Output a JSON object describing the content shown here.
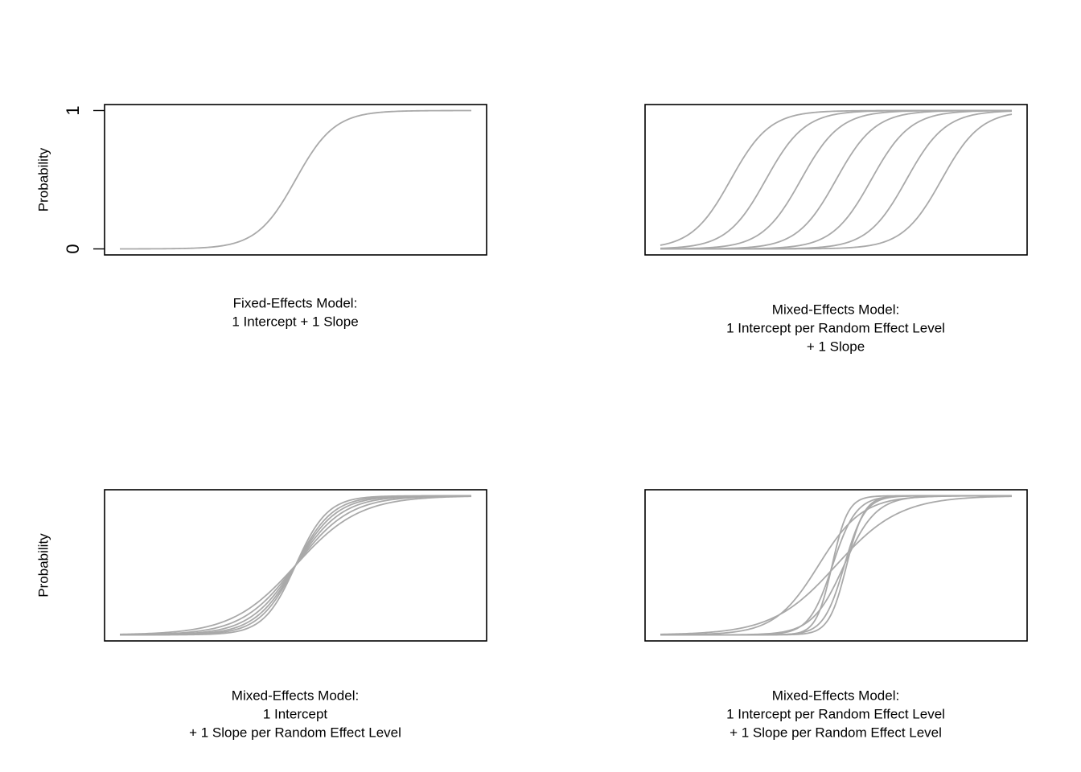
{
  "chart_data": [
    {
      "type": "line",
      "ylabel": "Probability",
      "yticks": [
        "0",
        "1"
      ],
      "xlim": [
        -10,
        10
      ],
      "ylim": [
        0,
        1
      ],
      "caption": [
        "Fixed-Effects Model:",
        "1 Intercept + 1 Slope"
      ],
      "series": [
        {
          "intercept": 0,
          "slope": 0.9
        }
      ]
    },
    {
      "type": "line",
      "ylabel": "",
      "yticks": [],
      "xlim": [
        -10,
        10
      ],
      "ylim": [
        0,
        1
      ],
      "caption": [
        "Mixed-Effects Model:",
        "1 Intercept per Random Effect Level",
        "+ 1 Slope"
      ],
      "series": [
        {
          "intercept": 5.4,
          "slope": 0.9
        },
        {
          "intercept": 3.6,
          "slope": 0.9
        },
        {
          "intercept": 1.8,
          "slope": 0.9
        },
        {
          "intercept": 0,
          "slope": 0.9
        },
        {
          "intercept": -1.8,
          "slope": 0.9
        },
        {
          "intercept": -3.6,
          "slope": 0.9
        },
        {
          "intercept": -5.4,
          "slope": 0.9
        }
      ]
    },
    {
      "type": "line",
      "ylabel": "Probability",
      "yticks": [],
      "xlim": [
        -10,
        10
      ],
      "ylim": [
        0,
        1
      ],
      "caption": [
        "Mixed-Effects Model:",
        "1 Intercept",
        "+ 1 Slope per Random Effect Level"
      ],
      "series": [
        {
          "intercept": 0,
          "slope": 0.55
        },
        {
          "intercept": 0,
          "slope": 0.65
        },
        {
          "intercept": 0,
          "slope": 0.75
        },
        {
          "intercept": 0,
          "slope": 0.85
        },
        {
          "intercept": 0,
          "slope": 0.95
        },
        {
          "intercept": 0,
          "slope": 1.1
        }
      ]
    },
    {
      "type": "line",
      "ylabel": "",
      "yticks": [],
      "xlim": [
        -10,
        10
      ],
      "ylim": [
        0,
        1
      ],
      "caption": [
        "Mixed-Effects Model:",
        "1 Intercept per Random Effect Level",
        "+ 1 Slope per Random Effect Level"
      ],
      "series": [
        {
          "intercept": 0,
          "slope": 0.55
        },
        {
          "intercept": 0.8,
          "slope": 0.8
        },
        {
          "intercept": -0.5,
          "slope": 1.1
        },
        {
          "intercept": 0.3,
          "slope": 1.5
        },
        {
          "intercept": -0.8,
          "slope": 1.7
        },
        {
          "intercept": -1.2,
          "slope": 2.0
        },
        {
          "intercept": 0.5,
          "slope": 2.2
        }
      ]
    }
  ]
}
